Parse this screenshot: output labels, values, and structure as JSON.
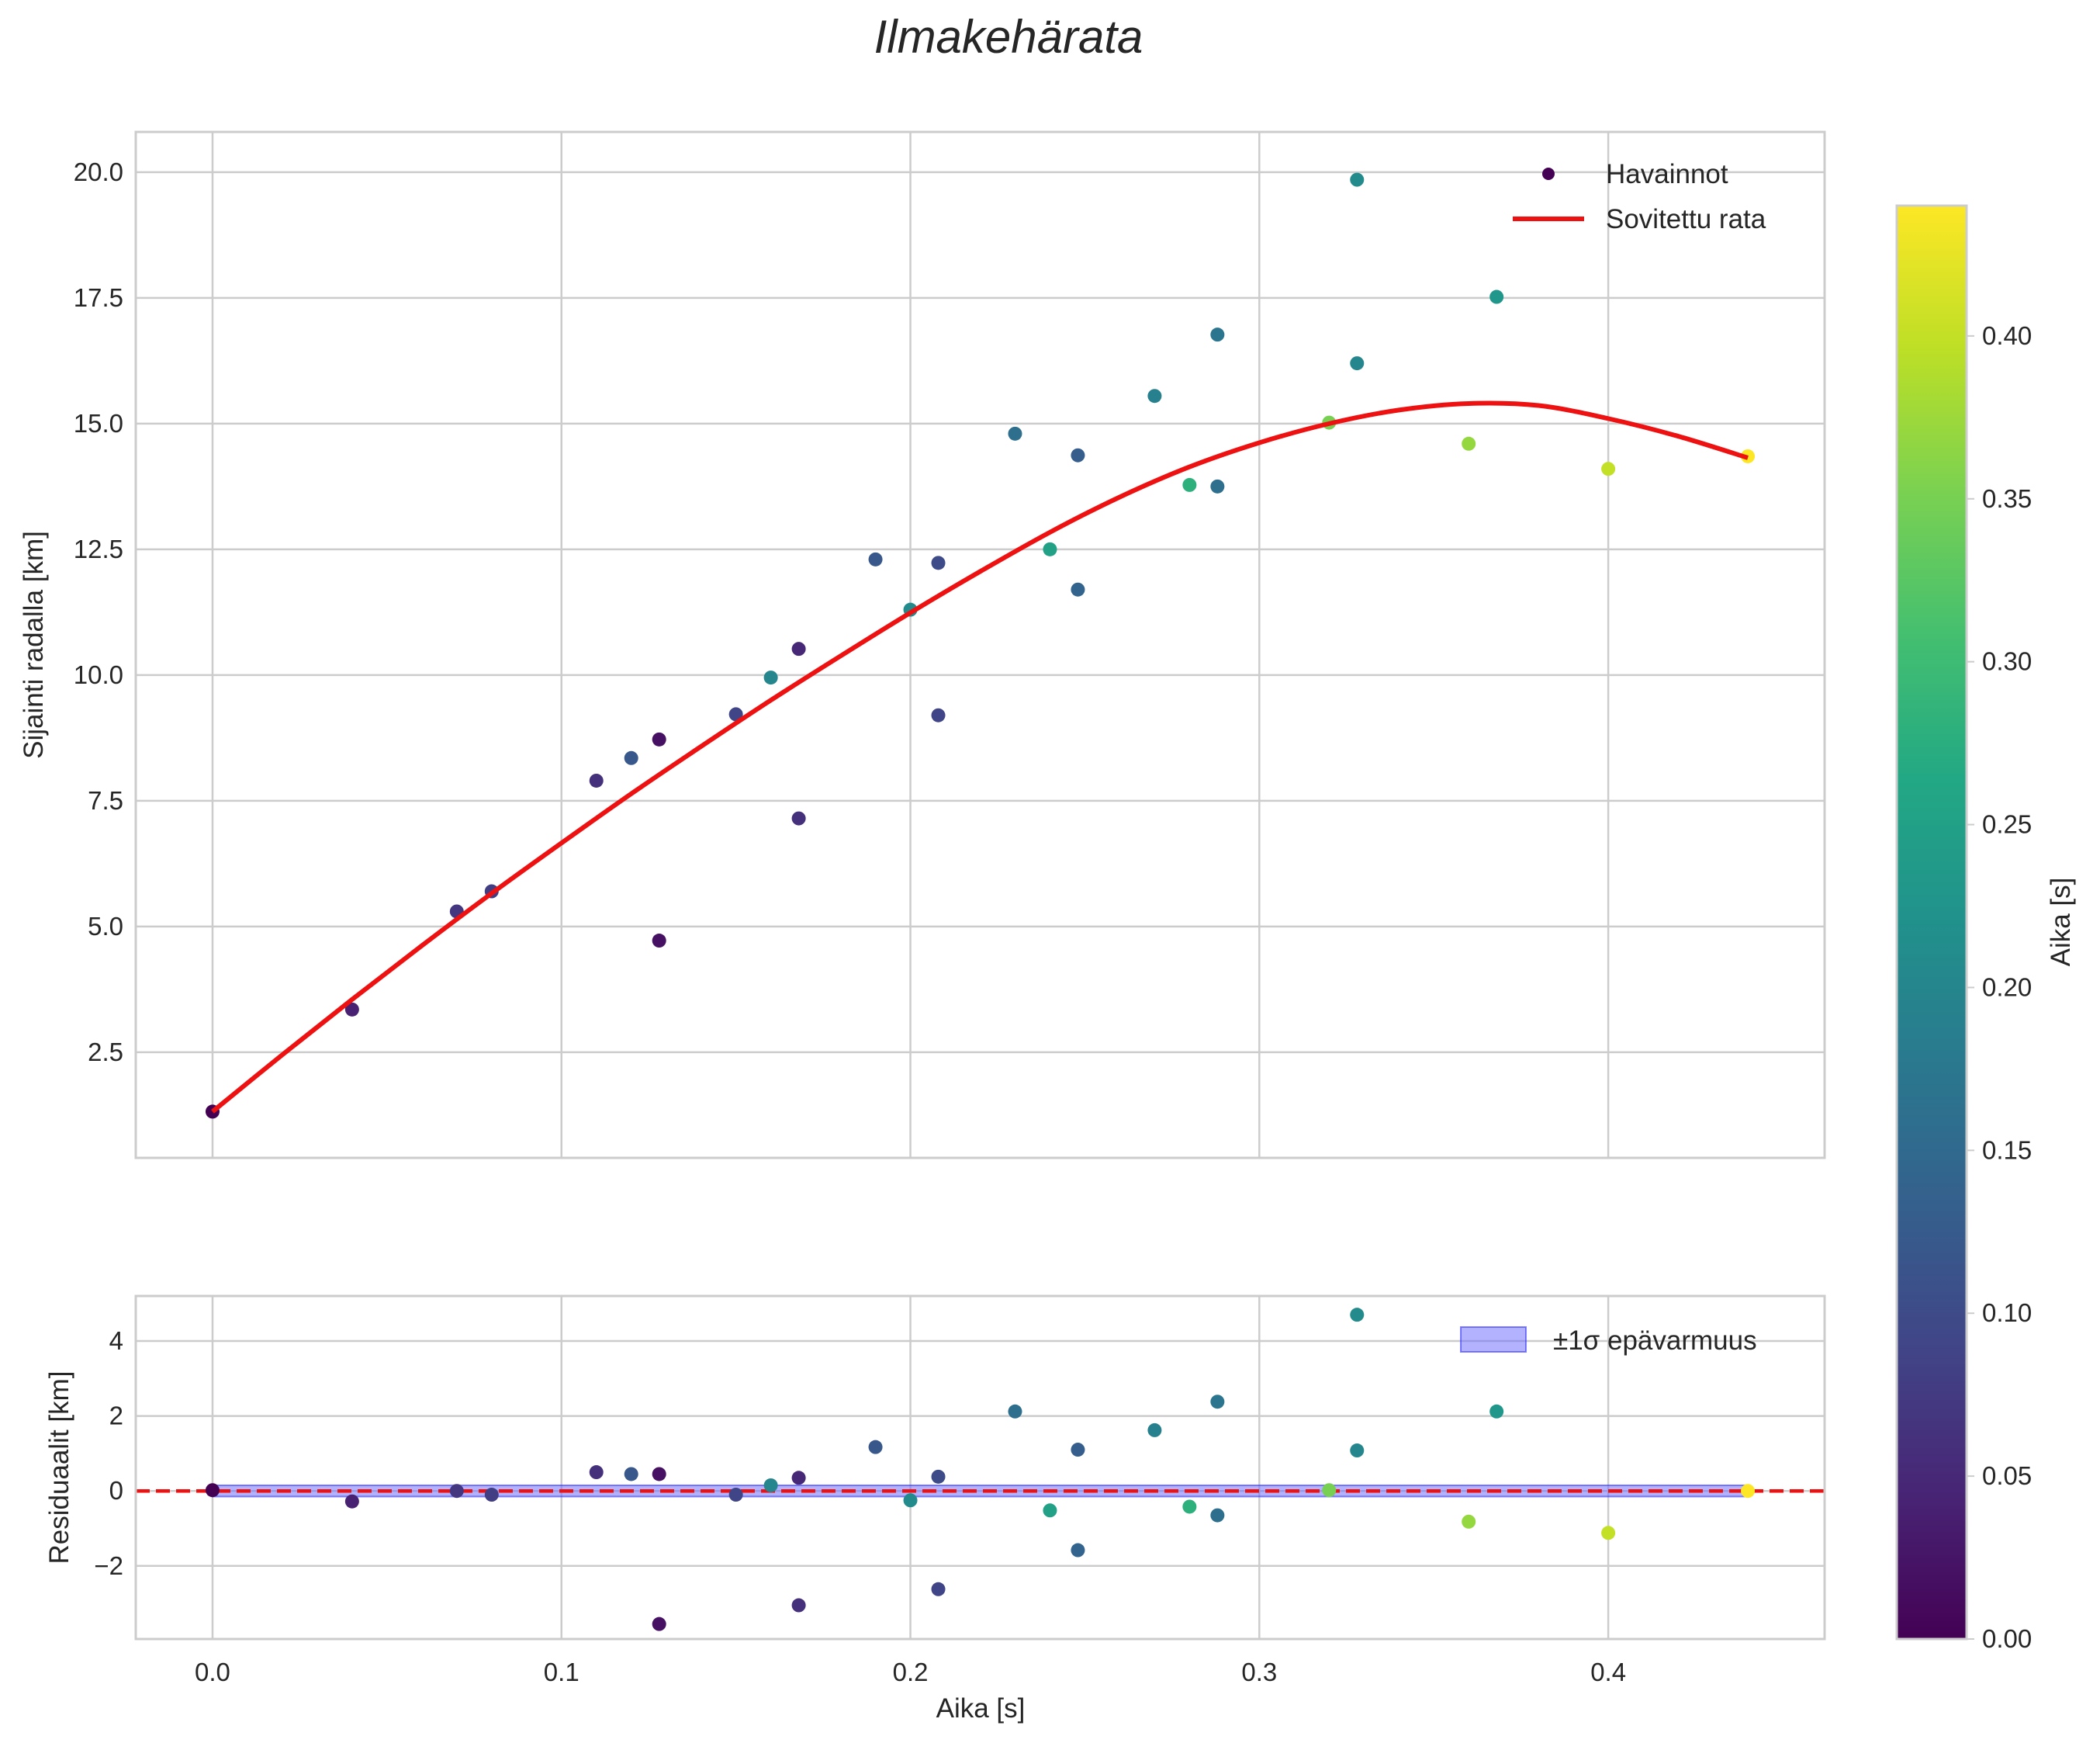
{
  "chart_data": [
    {
      "type": "scatter",
      "panel": "main",
      "title": "Ilmakehärata",
      "xlabel": "",
      "ylabel": "Sijainti radalla [km]",
      "xlim": [
        -0.022,
        0.462
      ],
      "ylim": [
        0.4,
        20.8
      ],
      "x_ticks": [
        0.0,
        0.1,
        0.2,
        0.3,
        0.4
      ],
      "x_tick_labels": [
        "0.0",
        "0.1",
        "0.2",
        "0.3",
        "0.4"
      ],
      "y_ticks": [
        2.5,
        5.0,
        7.5,
        10.0,
        12.5,
        15.0,
        17.5,
        20.0
      ],
      "y_tick_labels": [
        "2.5",
        "5.0",
        "7.5",
        "10.0",
        "12.5",
        "15.0",
        "17.5",
        "20.0"
      ],
      "grid": true,
      "legend_position": "top-right",
      "series": [
        {
          "name": "Havainnot",
          "kind": "scatter",
          "colormap": "viridis",
          "x": [
            0.0,
            0.04,
            0.07,
            0.08,
            0.11,
            0.12,
            0.128,
            0.128,
            0.15,
            0.16,
            0.168,
            0.168,
            0.19,
            0.2,
            0.208,
            0.208,
            0.23,
            0.24,
            0.248,
            0.248,
            0.27,
            0.28,
            0.288,
            0.288,
            0.32,
            0.328,
            0.328,
            0.36,
            0.368,
            0.4,
            0.44
          ],
          "y": [
            1.32,
            3.35,
            5.3,
            5.7,
            7.9,
            8.35,
            8.72,
            4.72,
            9.22,
            9.95,
            10.52,
            7.15,
            12.3,
            11.3,
            12.23,
            9.2,
            14.8,
            12.5,
            14.37,
            11.7,
            15.55,
            13.78,
            16.77,
            13.75,
            15.02,
            19.85,
            16.2,
            14.6,
            17.52,
            14.1,
            14.35
          ],
          "color_values": [
            0.0,
            0.04,
            0.07,
            0.08,
            0.06,
            0.12,
            0.02,
            0.02,
            0.09,
            0.2,
            0.05,
            0.06,
            0.12,
            0.21,
            0.1,
            0.09,
            0.16,
            0.25,
            0.13,
            0.14,
            0.19,
            0.28,
            0.17,
            0.16,
            0.35,
            0.21,
            0.2,
            0.37,
            0.23,
            0.4,
            0.44
          ]
        },
        {
          "name": "Sovitettu rata",
          "kind": "line",
          "color": "#ee1111",
          "x": [
            0.0,
            0.02,
            0.04,
            0.06,
            0.08,
            0.1,
            0.12,
            0.14,
            0.16,
            0.18,
            0.2,
            0.22,
            0.24,
            0.26,
            0.28,
            0.3,
            0.32,
            0.34,
            0.36,
            0.38,
            0.4,
            0.42,
            0.44
          ],
          "y": [
            1.32,
            2.45,
            3.55,
            4.62,
            5.66,
            6.66,
            7.64,
            8.58,
            9.5,
            10.38,
            11.24,
            12.06,
            12.84,
            13.54,
            14.14,
            14.62,
            15.0,
            15.27,
            15.4,
            15.36,
            15.1,
            14.75,
            14.32
          ]
        }
      ]
    },
    {
      "type": "scatter",
      "panel": "residuals",
      "title": "",
      "xlabel": "Aika [s]",
      "ylabel": "Residuaalit [km]",
      "xlim": [
        -0.022,
        0.462
      ],
      "ylim": [
        -3.95,
        5.2
      ],
      "x_ticks": [
        0.0,
        0.1,
        0.2,
        0.3,
        0.4
      ],
      "x_tick_labels": [
        "0.0",
        "0.1",
        "0.2",
        "0.3",
        "0.4"
      ],
      "y_ticks": [
        -2,
        0,
        2,
        4
      ],
      "y_tick_labels": [
        "−2",
        "0",
        "2",
        "4"
      ],
      "grid": true,
      "legend_position": "top-right",
      "zero_line": {
        "y": 0,
        "color": "#ee1111",
        "style": "dashed"
      },
      "band": {
        "name": "±1σ epävarmuus",
        "x": [
          0.0,
          0.44
        ],
        "lower": -0.15,
        "upper": 0.15,
        "color": "#6666ff"
      },
      "series": [
        {
          "name": "Residuaalit",
          "kind": "scatter",
          "colormap": "viridis",
          "x": [
            0.0,
            0.04,
            0.07,
            0.08,
            0.11,
            0.12,
            0.128,
            0.128,
            0.15,
            0.16,
            0.168,
            0.168,
            0.19,
            0.2,
            0.208,
            0.208,
            0.23,
            0.24,
            0.248,
            0.248,
            0.27,
            0.28,
            0.288,
            0.288,
            0.32,
            0.328,
            0.328,
            0.36,
            0.368,
            0.4,
            0.44
          ],
          "y": [
            0.02,
            -0.28,
            0.0,
            -0.1,
            0.5,
            0.45,
            0.45,
            -3.55,
            -0.1,
            0.15,
            0.35,
            -3.05,
            1.17,
            -0.25,
            0.38,
            -2.62,
            2.12,
            -0.52,
            1.1,
            -1.58,
            1.62,
            -0.42,
            2.38,
            -0.65,
            0.02,
            4.7,
            1.08,
            -0.82,
            2.12,
            -1.12,
            0.0
          ],
          "color_values": [
            0.0,
            0.04,
            0.07,
            0.08,
            0.06,
            0.12,
            0.02,
            0.02,
            0.09,
            0.2,
            0.05,
            0.06,
            0.12,
            0.21,
            0.1,
            0.09,
            0.16,
            0.25,
            0.13,
            0.14,
            0.19,
            0.28,
            0.17,
            0.16,
            0.35,
            0.21,
            0.2,
            0.37,
            0.23,
            0.4,
            0.44
          ]
        }
      ]
    }
  ],
  "colorbar": {
    "label": "Aika [s]",
    "colormap": "viridis",
    "range": [
      0.0,
      0.44
    ],
    "ticks": [
      0.0,
      0.05,
      0.1,
      0.15,
      0.2,
      0.25,
      0.3,
      0.35,
      0.4
    ],
    "tick_labels": [
      "0.00",
      "0.05",
      "0.10",
      "0.15",
      "0.20",
      "0.25",
      "0.30",
      "0.35",
      "0.40"
    ]
  },
  "legend_main": {
    "observations": "Havainnot",
    "fit": "Sovitettu rata"
  },
  "legend_residuals": {
    "band": "±1σ epävarmuus"
  }
}
